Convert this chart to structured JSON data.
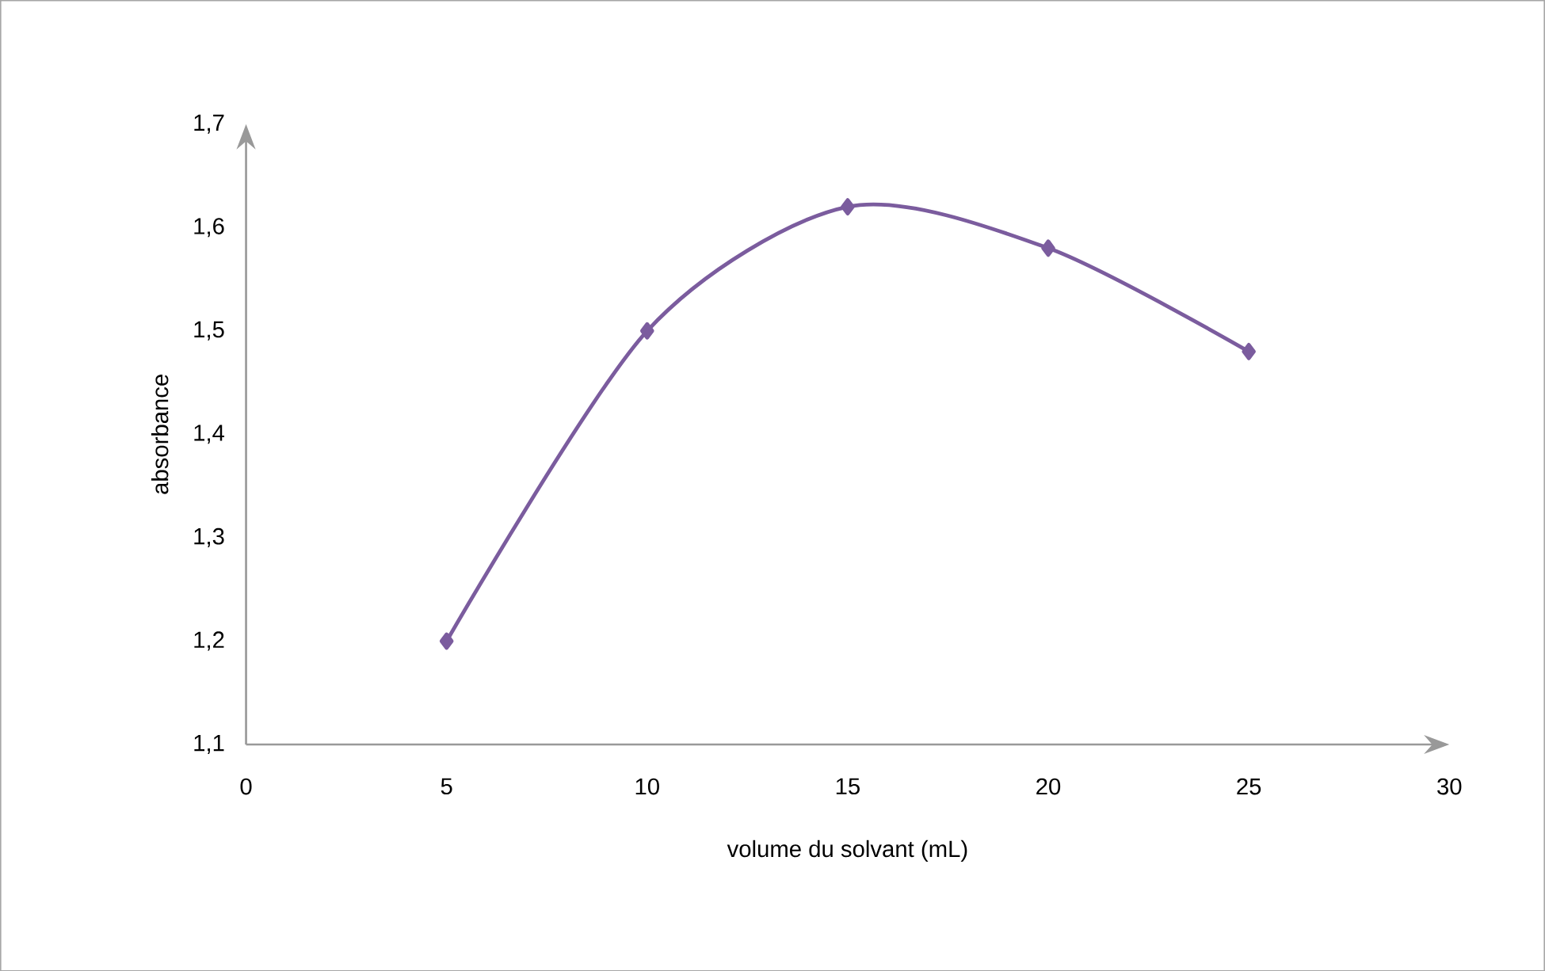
{
  "chart_data": {
    "type": "line",
    "xlabel": "volume du solvant (mL)",
    "ylabel": "absorbance",
    "x": [
      5,
      10,
      15,
      20,
      25
    ],
    "series": [
      {
        "color": "#7b5c9e",
        "values": [
          1.2,
          1.5,
          1.62,
          1.58,
          1.48
        ]
      }
    ],
    "xlim": [
      0,
      30
    ],
    "xticks": [
      0,
      5,
      10,
      15,
      20,
      25,
      30
    ],
    "ylim": [
      1.1,
      1.7
    ],
    "yticks": [
      {
        "value": 1.1,
        "label": "1,1"
      },
      {
        "value": 1.2,
        "label": "1,2"
      },
      {
        "value": 1.3,
        "label": "1,3"
      },
      {
        "value": 1.4,
        "label": "1,4"
      },
      {
        "value": 1.5,
        "label": "1,5"
      },
      {
        "value": 1.6,
        "label": "1,6"
      },
      {
        "value": 1.7,
        "label": "1,7"
      }
    ],
    "grid": false,
    "marker": "diamond",
    "line_style": "solid"
  }
}
